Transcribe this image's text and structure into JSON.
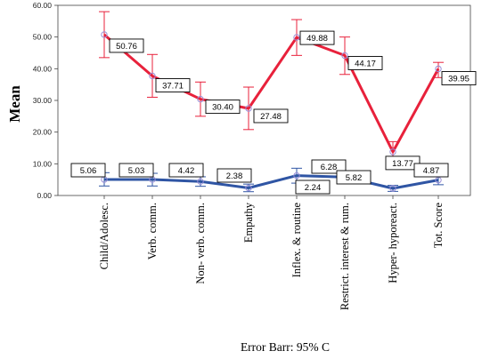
{
  "chart_data": {
    "type": "line",
    "title": "",
    "ylabel": "Mean",
    "xlabel": "Error Barr: 95% C",
    "ylim": [
      0,
      60
    ],
    "yticks": [
      0,
      10,
      20,
      30,
      40,
      50,
      60
    ],
    "ytick_labels": [
      "0.00",
      "10.00",
      "20.00",
      "30.00",
      "40.00",
      "50.00",
      "60.00"
    ],
    "categories": [
      "Child/Adolesc.",
      "Verb. comm.",
      "Non- verb. comm.",
      "Empathy",
      "Inflex. & routine",
      "Restrict. interest & rum.",
      "Hyper- hyporeact.",
      "Tot. Score"
    ],
    "grid": false,
    "series": [
      {
        "color": "#e8213b",
        "values": [
          50.76,
          37.71,
          30.4,
          27.48,
          49.88,
          44.17,
          13.77,
          39.95
        ],
        "labels": [
          "50.76",
          "37.71",
          "30.40",
          "27.48",
          "49.88",
          "44.17",
          "13.77",
          "39.95"
        ],
        "err_low": [
          43.5,
          31.0,
          25.0,
          20.8,
          44.2,
          38.2,
          10.5,
          37.2
        ],
        "err_high": [
          58.0,
          44.5,
          35.8,
          34.2,
          55.5,
          50.0,
          17.0,
          42.0
        ]
      },
      {
        "color": "#2f55a4",
        "values": [
          5.06,
          5.03,
          4.42,
          2.38,
          6.28,
          5.82,
          2.24,
          4.87
        ],
        "labels": [
          "5.06",
          "5.03",
          "4.42",
          "2.38",
          "6.28",
          "5.82",
          "2.24",
          "4.87"
        ],
        "err_low": [
          3.0,
          3.0,
          2.9,
          1.2,
          3.9,
          3.9,
          1.3,
          3.4
        ],
        "err_high": [
          7.2,
          7.0,
          5.9,
          3.6,
          8.6,
          7.7,
          3.2,
          6.3
        ]
      }
    ],
    "marker_color": "#9a8fd8"
  }
}
